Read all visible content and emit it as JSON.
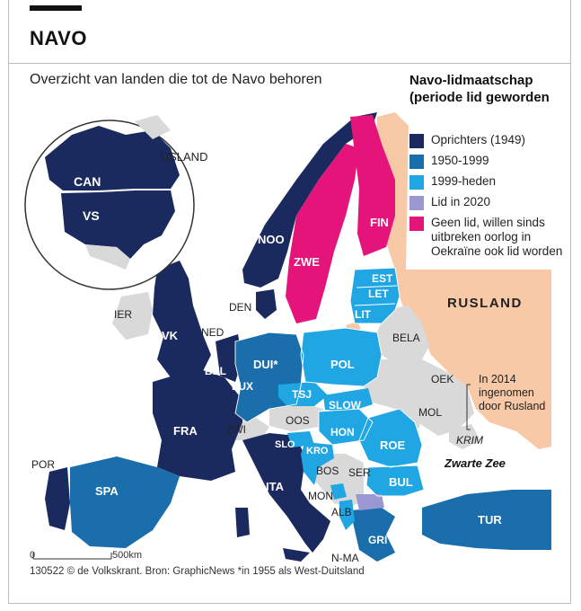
{
  "header": {
    "title": "NAVO",
    "subtitle": "Overzicht van landen die tot de Navo behoren"
  },
  "legend": {
    "title": "Navo-lidmaatschap (periode lid geworden",
    "items": [
      {
        "label": "Oprichters (1949)",
        "color": "#1b2a5e"
      },
      {
        "label": "1950-1999",
        "color": "#1a6eab"
      },
      {
        "label": "1999-heden",
        "color": "#1fa6e3"
      },
      {
        "label": "Lid in 2020",
        "color": "#9b97d0"
      },
      {
        "label": "Geen lid, willen sinds uitbreken oorlog in Oekraïne ook lid worden",
        "color": "#e5147a"
      }
    ]
  },
  "colors": {
    "founders": "#1b2a5e",
    "era_1950_1999": "#1a6eab",
    "era_1999_now": "#1fa6e3",
    "member_2020": "#9b97d0",
    "applicant": "#e5147a",
    "russia": "#f8c9a6",
    "non_member": "#d9d9d9",
    "sea": "#ffffff",
    "border": "#ffffff"
  },
  "labels": {
    "can": "CAN",
    "vs": "VS",
    "ijsland": "IJSLAND",
    "noo": "NOO",
    "zwe": "ZWE",
    "fin": "FIN",
    "rusland": "RUSLAND",
    "est": "EST",
    "let": "LET",
    "lit": "LIT",
    "den": "DEN",
    "ier": "IER",
    "vk": "VK",
    "ned": "NED",
    "bel": "BEL",
    "lux": "LUX",
    "dui": "DUI*",
    "pol": "POL",
    "bela": "BELA",
    "oek": "OEK",
    "tsj": "TSJ",
    "slow": "SLOW",
    "oos": "OOS",
    "hon": "HON",
    "roe": "ROE",
    "mol": "MOL",
    "fra": "FRA",
    "zwi": "ZWI",
    "slo": "SLO",
    "kro": "KRO",
    "bos": "BOS",
    "ser": "SER",
    "bul": "BUL",
    "mon": "MON",
    "alb": "ALB",
    "n_ma": "N-MA",
    "gri": "GRI",
    "tur": "TUR",
    "ita": "ITA",
    "spa": "SPA",
    "por": "POR",
    "krim": "KRIM",
    "crimea_note": "In 2014 ingenomen door Rusland",
    "black_sea": "Zwarte Zee"
  },
  "scale": {
    "zero": "0",
    "distance": "500km"
  },
  "footer": "130522 © de Volkskrant. Bron: GraphicNews *in 1955 als West-Duitsland"
}
